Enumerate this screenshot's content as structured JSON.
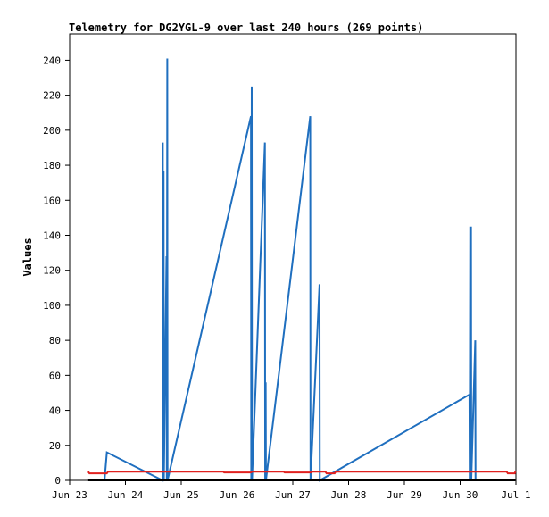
{
  "chart_data": {
    "type": "line",
    "title": "Telemetry for DG2YGL-9 over last 240 hours (269 points)",
    "xlabel": "",
    "ylabel": "Values",
    "xlim": [
      "Jun 23",
      "Jul 1"
    ],
    "ylim": [
      0,
      255
    ],
    "x_tick_labels": [
      "Jun 23",
      "Jun 24",
      "Jun 25",
      "Jun 26",
      "Jun 27",
      "Jun 28",
      "Jun 29",
      "Jun 30",
      "Jul 1"
    ],
    "y_ticks": [
      0,
      20,
      40,
      60,
      80,
      100,
      120,
      140,
      160,
      180,
      200,
      220,
      240
    ],
    "grid": false,
    "legend": "none",
    "colors": {
      "blue": "#1f6fbf",
      "red": "#e0211f",
      "black": "#000000"
    },
    "series": [
      {
        "color": "blue",
        "points": [
          [
            "Jun 23 15:00",
            0
          ],
          [
            "Jun 23 16:00",
            16
          ],
          [
            "Jun 24 16:00",
            0
          ],
          [
            "Jun 24 16:05",
            193
          ],
          [
            "Jun 24 16:12",
            0
          ],
          [
            "Jun 24 16:25",
            177
          ],
          [
            "Jun 24 16:32",
            0
          ],
          [
            "Jun 24 17:40",
            128
          ],
          [
            "Jun 24 17:47",
            0
          ],
          [
            "Jun 24 18:00",
            241
          ],
          [
            "Jun 24 18:07",
            0
          ],
          [
            "Jun 26 06:00",
            208
          ],
          [
            "Jun 26 06:07",
            0
          ],
          [
            "Jun 26 06:20",
            225
          ],
          [
            "Jun 26 06:27",
            0
          ],
          [
            "Jun 26 12:00",
            193
          ],
          [
            "Jun 26 12:07",
            0
          ],
          [
            "Jun 26 12:20",
            56
          ],
          [
            "Jun 26 12:27",
            0
          ],
          [
            "Jun 27 07:30",
            208
          ],
          [
            "Jun 27 07:37",
            0
          ],
          [
            "Jun 27 11:30",
            112
          ],
          [
            "Jun 27 11:37",
            0
          ],
          [
            "Jun 30 04:00",
            49
          ],
          [
            "Jun 30 04:07",
            0
          ],
          [
            "Jun 30 04:20",
            145
          ],
          [
            "Jun 30 04:27",
            0
          ],
          [
            "Jun 30 04:40",
            145
          ],
          [
            "Jun 30 04:47",
            0
          ],
          [
            "Jun 30 06:30",
            80
          ],
          [
            "Jun 30 06:37",
            0
          ]
        ]
      },
      {
        "color": "red",
        "points": [
          [
            "Jun 23 08:00",
            5
          ],
          [
            "Jun 23 08:30",
            4
          ],
          [
            "Jun 23 16:00",
            4
          ],
          [
            "Jun 23 16:30",
            5
          ],
          [
            "Jun 25 18:00",
            5
          ],
          [
            "Jun 25 18:30",
            4.5
          ],
          [
            "Jun 26 06:00",
            4.5
          ],
          [
            "Jun 26 06:30",
            5
          ],
          [
            "Jun 26 20:00",
            5
          ],
          [
            "Jun 26 20:30",
            4.5
          ],
          [
            "Jun 27 08:00",
            4.5
          ],
          [
            "Jun 27 08:30",
            5
          ],
          [
            "Jun 27 14:00",
            5
          ],
          [
            "Jun 27 14:30",
            4
          ],
          [
            "Jun 27 18:00",
            4
          ],
          [
            "Jun 27 18:30",
            5
          ],
          [
            "Jun 30 20:00",
            5
          ],
          [
            "Jun 30 20:30",
            4
          ],
          [
            "Jun 30 23:30",
            4
          ],
          [
            "Jun 30 23:45",
            5
          ]
        ]
      },
      {
        "color": "black",
        "points": [
          [
            "Jun 23 08:00",
            0
          ],
          [
            "Jun 30 23:45",
            0
          ]
        ]
      }
    ]
  }
}
